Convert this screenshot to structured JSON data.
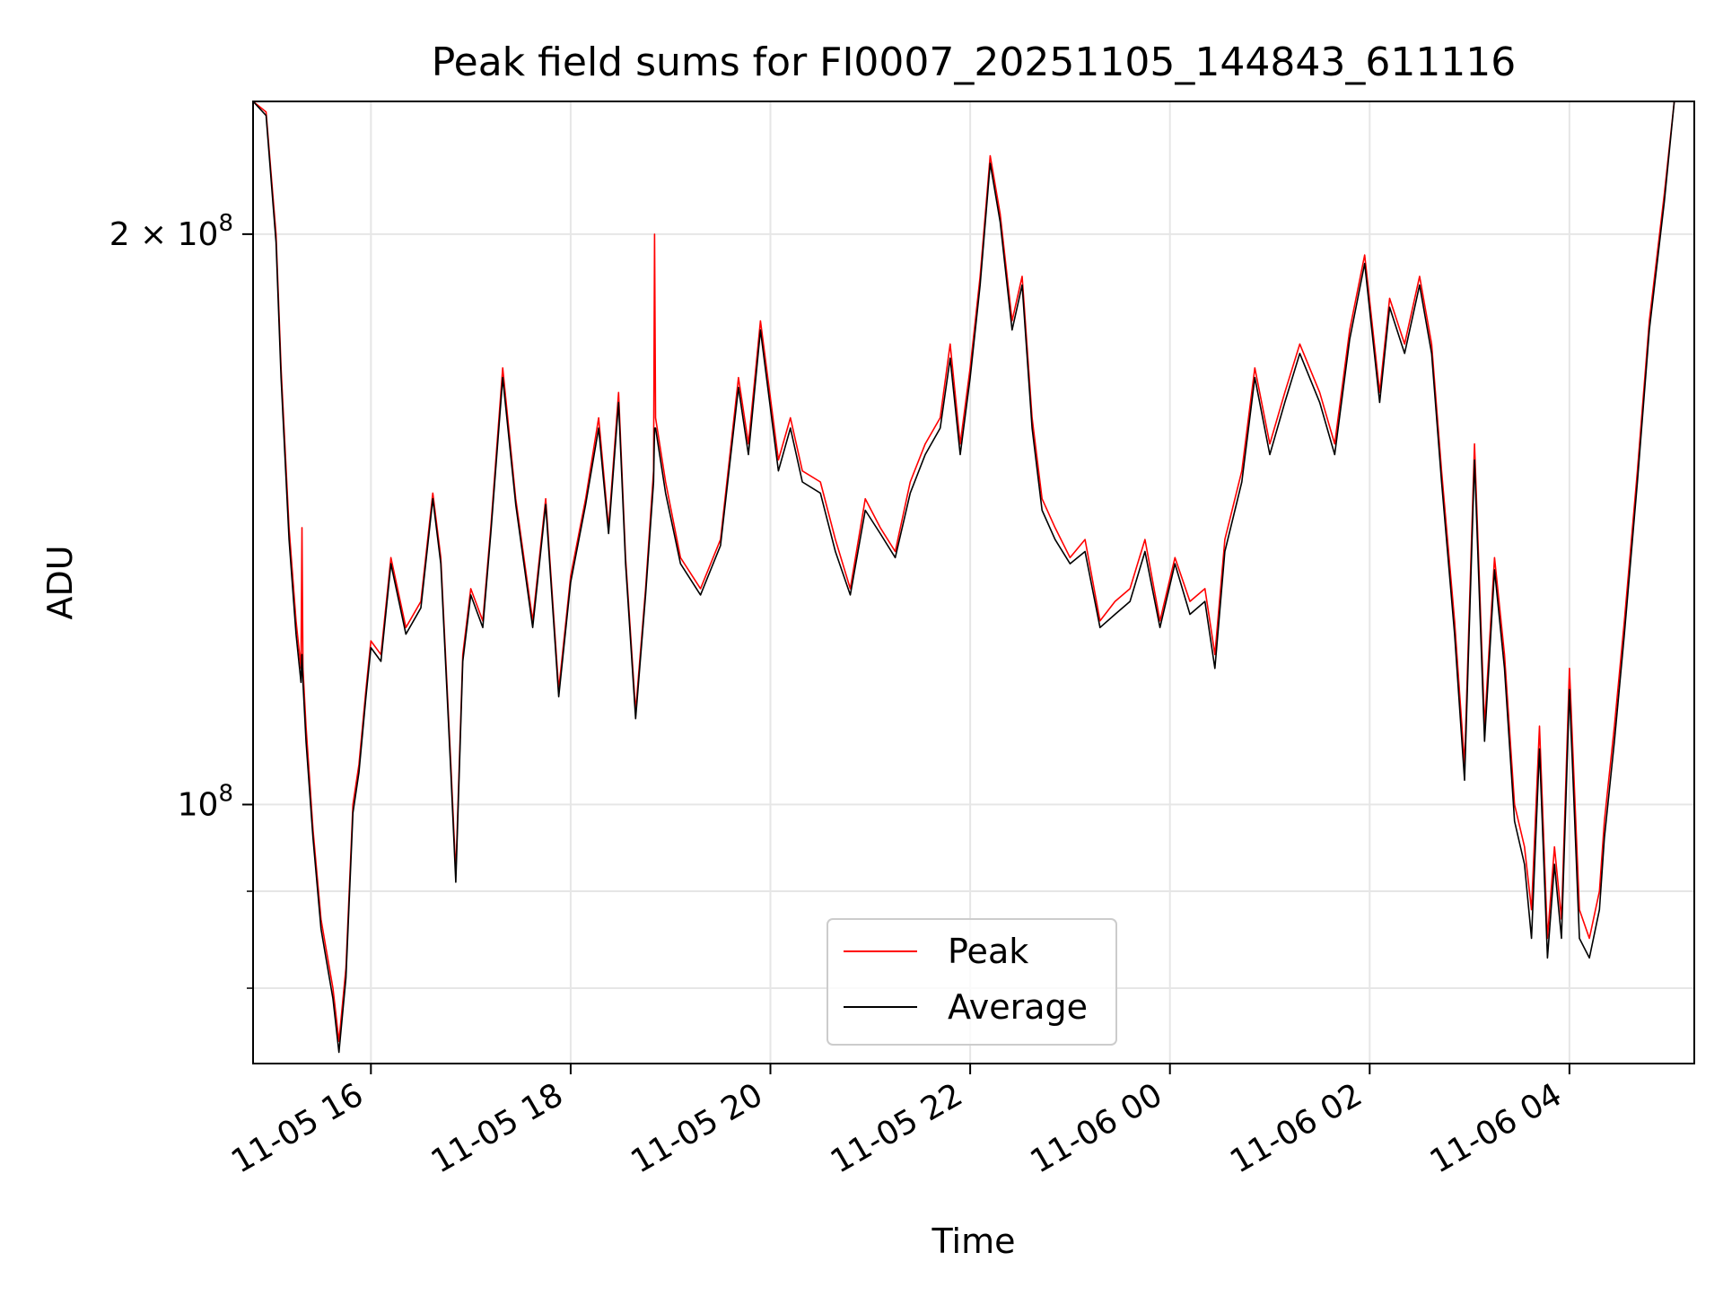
{
  "chart_data": {
    "type": "line",
    "title": "Peak field sums for FI0007_20251105_144843_611116",
    "xlabel": "Time",
    "ylabel": "ADU",
    "x_unit": "hours since 2025-11-05 00:00",
    "xlim": [
      14.82,
      29.25
    ],
    "ylim": [
      73000000,
      235000000
    ],
    "yscale": "log",
    "x_ticks": [
      {
        "value": 16,
        "label": "11-05 16"
      },
      {
        "value": 18,
        "label": "11-05 18"
      },
      {
        "value": 20,
        "label": "11-05 20"
      },
      {
        "value": 22,
        "label": "11-05 22"
      },
      {
        "value": 24,
        "label": "11-06 00"
      },
      {
        "value": 26,
        "label": "11-06 02"
      },
      {
        "value": 28,
        "label": "11-06 04"
      }
    ],
    "y_major_ticks": [
      {
        "value": 100000000,
        "mantissa": "",
        "exp": "8"
      },
      {
        "value": 200000000,
        "mantissa": "2",
        "exp": "8"
      }
    ],
    "y_minor_gridlines": [
      80000000,
      90000000
    ],
    "grid": true,
    "legend_position": "lower-center",
    "legend": [
      {
        "label": "Peak",
        "color": "#ff0000"
      },
      {
        "label": "Average",
        "color": "#000000"
      }
    ],
    "series": [
      {
        "name": "Peak",
        "color": "#ff0000",
        "x": [
          14.82,
          14.95,
          15.05,
          15.1,
          15.18,
          15.25,
          15.3,
          15.31,
          15.32,
          15.35,
          15.42,
          15.5,
          15.55,
          15.62,
          15.68,
          15.75,
          15.82,
          15.88,
          15.95,
          16.0,
          16.1,
          16.2,
          16.35,
          16.5,
          16.62,
          16.7,
          16.8,
          16.85,
          16.92,
          17.0,
          17.12,
          17.2,
          17.32,
          17.45,
          17.62,
          17.75,
          17.88,
          18.0,
          18.15,
          18.28,
          18.38,
          18.48,
          18.55,
          18.65,
          18.75,
          18.83,
          18.84,
          18.85,
          18.95,
          19.1,
          19.3,
          19.5,
          19.68,
          19.78,
          19.9,
          20.08,
          20.2,
          20.32,
          20.5,
          20.65,
          20.8,
          20.95,
          21.1,
          21.25,
          21.4,
          21.55,
          21.7,
          21.8,
          21.9,
          22.0,
          22.1,
          22.2,
          22.3,
          22.42,
          22.52,
          22.62,
          22.72,
          22.85,
          23.0,
          23.15,
          23.3,
          23.45,
          23.6,
          23.75,
          23.9,
          24.05,
          24.2,
          24.35,
          24.45,
          24.55,
          24.72,
          24.85,
          25.0,
          25.15,
          25.3,
          25.5,
          25.65,
          25.8,
          25.95,
          26.1,
          26.2,
          26.35,
          26.5,
          26.62,
          26.72,
          26.85,
          26.95,
          27.05,
          27.15,
          27.25,
          27.35,
          27.45,
          27.55,
          27.62,
          27.7,
          27.78,
          27.85,
          27.92,
          28.0,
          28.1,
          28.2,
          28.3,
          28.35,
          28.45,
          28.55,
          28.68,
          28.8,
          28.95,
          29.05,
          29.15,
          29.25
        ],
        "y": [
          235000000,
          232000000,
          200000000,
          170000000,
          140000000,
          125000000,
          118000000,
          140000000,
          118000000,
          110000000,
          97000000,
          87000000,
          84000000,
          80000000,
          75000000,
          82000000,
          100000000,
          105000000,
          115000000,
          122000000,
          120000000,
          135000000,
          124000000,
          128000000,
          146000000,
          135000000,
          105000000,
          92000000,
          120000000,
          130000000,
          125000000,
          140000000,
          170000000,
          145000000,
          125000000,
          145000000,
          115000000,
          132000000,
          145000000,
          160000000,
          140000000,
          165000000,
          135000000,
          112000000,
          130000000,
          150000000,
          200000000,
          160000000,
          148000000,
          135000000,
          130000000,
          138000000,
          168000000,
          155000000,
          180000000,
          152000000,
          160000000,
          150000000,
          148000000,
          138000000,
          130000000,
          145000000,
          140000000,
          136000000,
          148000000,
          155000000,
          160000000,
          175000000,
          155000000,
          170000000,
          190000000,
          220000000,
          205000000,
          180000000,
          190000000,
          160000000,
          145000000,
          140000000,
          135000000,
          138000000,
          125000000,
          128000000,
          130000000,
          138000000,
          125000000,
          135000000,
          128000000,
          130000000,
          120000000,
          138000000,
          150000000,
          170000000,
          155000000,
          165000000,
          175000000,
          165000000,
          155000000,
          178000000,
          195000000,
          165000000,
          185000000,
          175000000,
          190000000,
          175000000,
          150000000,
          125000000,
          105000000,
          155000000,
          110000000,
          135000000,
          120000000,
          100000000,
          95000000,
          88000000,
          110000000,
          85000000,
          95000000,
          87000000,
          118000000,
          88000000,
          85000000,
          90000000,
          98000000,
          110000000,
          125000000,
          150000000,
          180000000,
          210000000,
          235000000,
          235000000,
          235000000
        ]
      },
      {
        "name": "Average",
        "color": "#000000",
        "x": [
          14.82,
          14.95,
          15.05,
          15.1,
          15.18,
          15.25,
          15.3,
          15.31,
          15.32,
          15.35,
          15.42,
          15.5,
          15.55,
          15.62,
          15.68,
          15.75,
          15.82,
          15.88,
          15.95,
          16.0,
          16.1,
          16.2,
          16.35,
          16.5,
          16.62,
          16.7,
          16.8,
          16.85,
          16.92,
          17.0,
          17.12,
          17.2,
          17.32,
          17.45,
          17.62,
          17.75,
          17.88,
          18.0,
          18.15,
          18.28,
          18.38,
          18.48,
          18.55,
          18.65,
          18.75,
          18.83,
          18.84,
          18.85,
          18.95,
          19.1,
          19.3,
          19.5,
          19.68,
          19.78,
          19.9,
          20.08,
          20.2,
          20.32,
          20.5,
          20.65,
          20.8,
          20.95,
          21.1,
          21.25,
          21.4,
          21.55,
          21.7,
          21.8,
          21.9,
          22.0,
          22.1,
          22.2,
          22.3,
          22.42,
          22.52,
          22.62,
          22.72,
          22.85,
          23.0,
          23.15,
          23.3,
          23.45,
          23.6,
          23.75,
          23.9,
          24.05,
          24.2,
          24.35,
          24.45,
          24.55,
          24.72,
          24.85,
          25.0,
          25.15,
          25.3,
          25.5,
          25.65,
          25.8,
          25.95,
          26.1,
          26.2,
          26.35,
          26.5,
          26.62,
          26.72,
          26.85,
          26.95,
          27.05,
          27.15,
          27.25,
          27.35,
          27.45,
          27.55,
          27.62,
          27.7,
          27.78,
          27.85,
          27.92,
          28.0,
          28.1,
          28.2,
          28.3,
          28.35,
          28.45,
          28.55,
          28.68,
          28.8,
          28.95,
          29.05,
          29.15,
          29.25
        ],
        "y": [
          235000000,
          231000000,
          198000000,
          168000000,
          138000000,
          123000000,
          116000000,
          120000000,
          116000000,
          108000000,
          96000000,
          86000000,
          83000000,
          79000000,
          74000000,
          81000000,
          99000000,
          104000000,
          114000000,
          121000000,
          119000000,
          134000000,
          123000000,
          127000000,
          145000000,
          134000000,
          104000000,
          91000000,
          119000000,
          129000000,
          124000000,
          139000000,
          168000000,
          144000000,
          124000000,
          144000000,
          114000000,
          131000000,
          144000000,
          158000000,
          139000000,
          163000000,
          134000000,
          111000000,
          129000000,
          148000000,
          158000000,
          158000000,
          146000000,
          134000000,
          129000000,
          137000000,
          166000000,
          153000000,
          178000000,
          150000000,
          158000000,
          148000000,
          146000000,
          136000000,
          129000000,
          143000000,
          139000000,
          135000000,
          146000000,
          153000000,
          158000000,
          172000000,
          153000000,
          168000000,
          188000000,
          218000000,
          203000000,
          178000000,
          188000000,
          158000000,
          143000000,
          138000000,
          134000000,
          136000000,
          124000000,
          126000000,
          128000000,
          136000000,
          124000000,
          134000000,
          126000000,
          128000000,
          118000000,
          136000000,
          148000000,
          168000000,
          153000000,
          163000000,
          173000000,
          163000000,
          153000000,
          176000000,
          193000000,
          163000000,
          183000000,
          173000000,
          188000000,
          173000000,
          148000000,
          123000000,
          103000000,
          152000000,
          108000000,
          133000000,
          118000000,
          98000000,
          93000000,
          85000000,
          107000000,
          83000000,
          93000000,
          85000000,
          115000000,
          85000000,
          83000000,
          88000000,
          96000000,
          108000000,
          123000000,
          148000000,
          178000000,
          208000000,
          235000000,
          235000000,
          235000000
        ]
      }
    ]
  }
}
